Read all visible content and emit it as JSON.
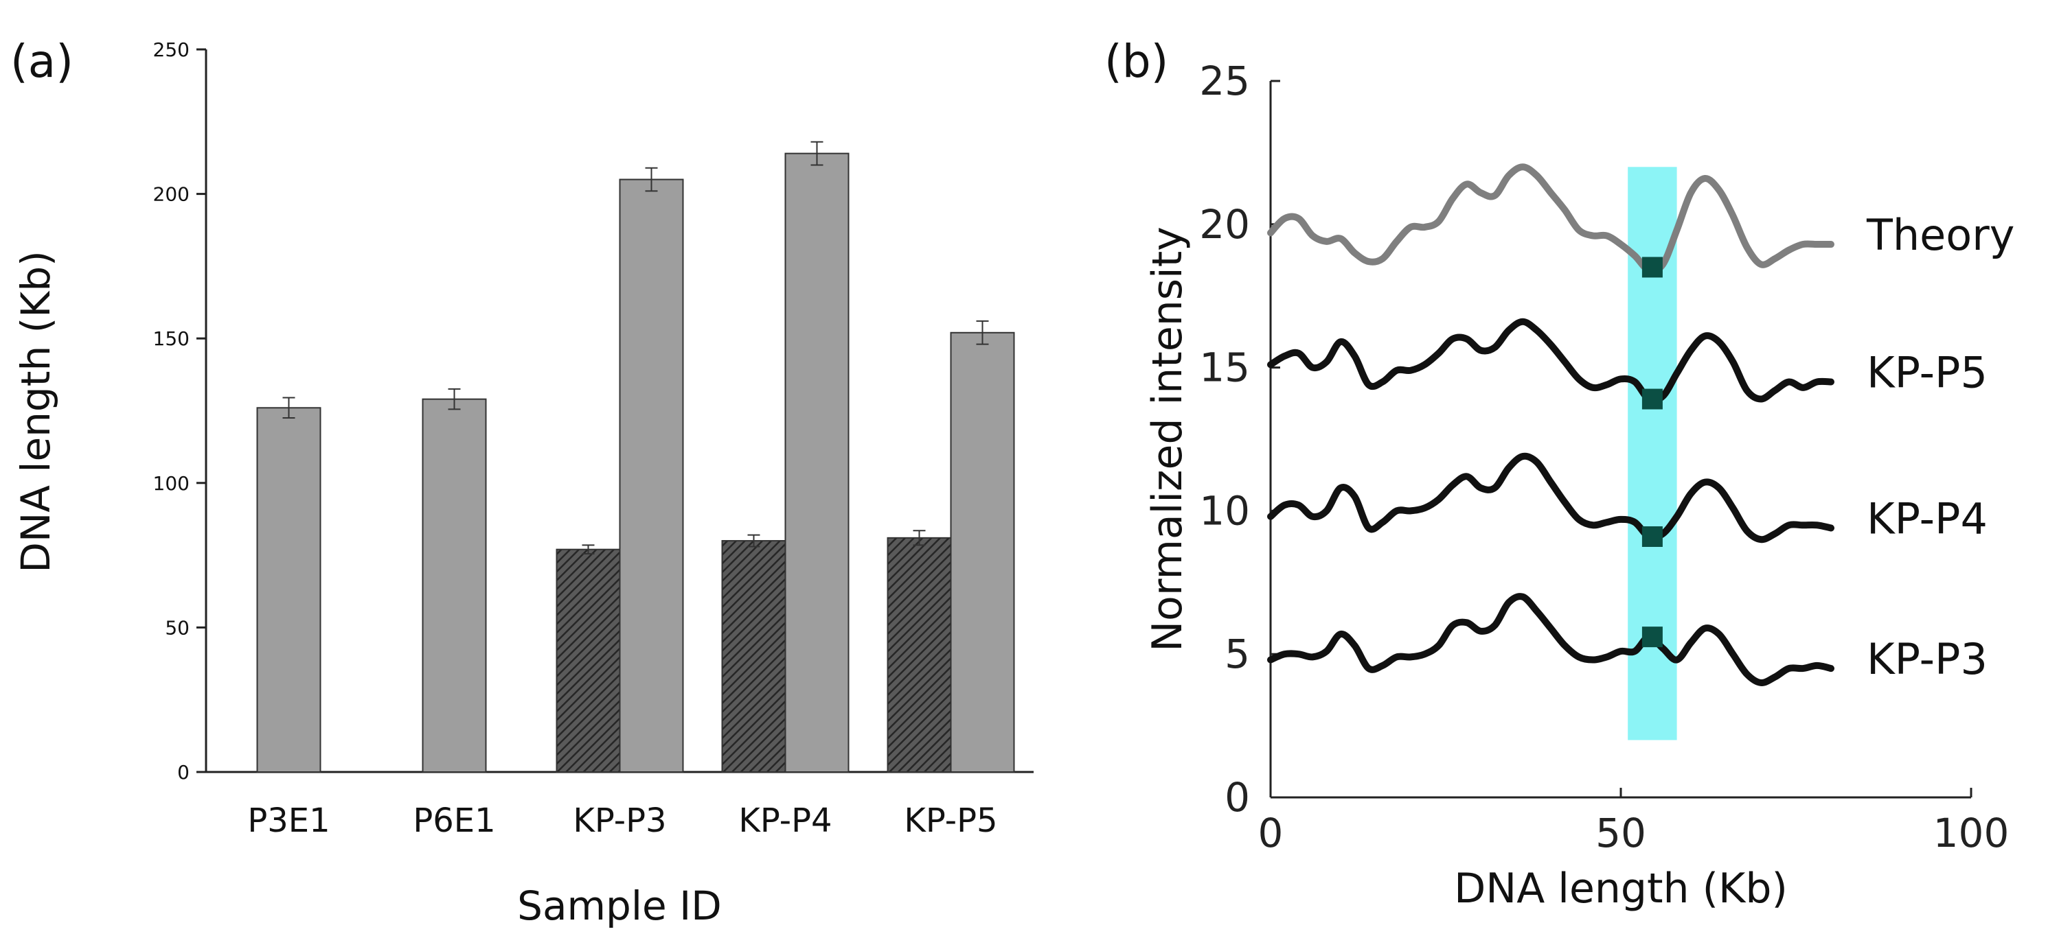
{
  "chart_data": [
    {
      "panel": "(a)",
      "type": "bar",
      "xlabel": "Sample ID",
      "ylabel": "DNA length (Kb)",
      "ylim": [
        0,
        250
      ],
      "yticks": [
        0,
        50,
        100,
        150,
        200,
        250
      ],
      "categories": [
        "P3E1",
        "P6E1",
        "KP-P3",
        "KP-P4",
        "KP-P5"
      ],
      "series": [
        {
          "name": "hatched",
          "fill": "#444444",
          "values": [
            null,
            null,
            77,
            80,
            81
          ],
          "errors": [
            null,
            null,
            1.5,
            2,
            2.5
          ]
        },
        {
          "name": "solid",
          "fill": "#9e9e9e",
          "values": [
            126,
            129,
            205,
            214,
            152
          ],
          "errors": [
            3.5,
            3.5,
            4,
            4,
            4
          ]
        }
      ]
    },
    {
      "panel": "(b)",
      "type": "line",
      "xlabel": "DNA length (Kb)",
      "ylabel": "Normalized intensity",
      "xlim": [
        0,
        100
      ],
      "ylim": [
        0,
        25
      ],
      "xticks": [
        0,
        50,
        100
      ],
      "yticks": [
        0,
        5,
        10,
        15,
        20,
        25
      ],
      "highlight": {
        "x": [
          51,
          58
        ],
        "y": [
          2,
          22
        ],
        "color": "#7ff3f5"
      },
      "series": [
        {
          "name": "Theory",
          "color": "#7f7f7f",
          "marker": [
            54.5,
            18.5
          ],
          "x": [
            0,
            2,
            4,
            6,
            8,
            10,
            12,
            14,
            16,
            18,
            20,
            22,
            24,
            26,
            28,
            30,
            32,
            34,
            36,
            38,
            40,
            42,
            44,
            46,
            48,
            50,
            52,
            54,
            56,
            58,
            60,
            62,
            64,
            66,
            68,
            70,
            72,
            74,
            76,
            78,
            80
          ],
          "y": [
            19.7,
            20.2,
            20.2,
            19.6,
            19.4,
            19.5,
            19.0,
            18.7,
            18.8,
            19.4,
            19.9,
            19.9,
            20.1,
            20.9,
            21.4,
            21.1,
            21.0,
            21.7,
            22.0,
            21.7,
            21.1,
            20.5,
            19.8,
            19.6,
            19.6,
            19.3,
            18.9,
            18.4,
            18.6,
            19.8,
            21.1,
            21.6,
            21.2,
            20.3,
            19.2,
            18.6,
            18.8,
            19.1,
            19.3,
            19.3,
            19.3
          ]
        },
        {
          "name": "KP-P5",
          "color": "#111111",
          "marker": [
            54.5,
            13.9
          ],
          "x": [
            0,
            2,
            4,
            6,
            8,
            10,
            12,
            14,
            16,
            18,
            20,
            22,
            24,
            26,
            28,
            30,
            32,
            34,
            36,
            38,
            40,
            42,
            44,
            46,
            48,
            50,
            52,
            54,
            56,
            58,
            60,
            62,
            64,
            66,
            68,
            70,
            72,
            74,
            76,
            78,
            80
          ],
          "y": [
            15.1,
            15.4,
            15.5,
            15.0,
            15.2,
            15.9,
            15.4,
            14.4,
            14.5,
            14.9,
            14.9,
            15.1,
            15.5,
            16.0,
            16.0,
            15.6,
            15.7,
            16.3,
            16.6,
            16.3,
            15.8,
            15.2,
            14.6,
            14.3,
            14.4,
            14.6,
            14.5,
            13.9,
            14.0,
            14.8,
            15.6,
            16.1,
            15.9,
            15.2,
            14.2,
            13.9,
            14.2,
            14.5,
            14.3,
            14.5,
            14.5
          ]
        },
        {
          "name": "KP-P4",
          "color": "#111111",
          "marker": [
            54.5,
            9.1
          ],
          "x": [
            0,
            2,
            4,
            6,
            8,
            10,
            12,
            14,
            16,
            18,
            20,
            22,
            24,
            26,
            28,
            30,
            32,
            34,
            36,
            38,
            40,
            42,
            44,
            46,
            48,
            50,
            52,
            54,
            56,
            58,
            60,
            62,
            64,
            66,
            68,
            70,
            72,
            74,
            76,
            78,
            80
          ],
          "y": [
            9.8,
            10.2,
            10.2,
            9.8,
            10.0,
            10.8,
            10.5,
            9.4,
            9.6,
            10.0,
            10.0,
            10.1,
            10.4,
            10.9,
            11.2,
            10.8,
            10.8,
            11.5,
            11.9,
            11.7,
            11.0,
            10.3,
            9.7,
            9.5,
            9.6,
            9.7,
            9.6,
            9.1,
            9.2,
            9.8,
            10.6,
            11.0,
            10.8,
            10.1,
            9.3,
            9.0,
            9.2,
            9.5,
            9.5,
            9.5,
            9.4
          ]
        },
        {
          "name": "KP-P3",
          "color": "#111111",
          "marker": [
            54.5,
            5.6
          ],
          "x": [
            0,
            2,
            4,
            6,
            8,
            10,
            12,
            14,
            16,
            18,
            20,
            22,
            24,
            26,
            28,
            30,
            32,
            34,
            36,
            38,
            40,
            42,
            44,
            46,
            48,
            50,
            52,
            54,
            56,
            58,
            60,
            62,
            64,
            66,
            68,
            70,
            72,
            74,
            76,
            78,
            80
          ],
          "y": [
            4.8,
            5.0,
            5.0,
            4.9,
            5.1,
            5.7,
            5.3,
            4.5,
            4.6,
            4.9,
            4.9,
            5.0,
            5.3,
            6.0,
            6.1,
            5.8,
            6.0,
            6.8,
            7.0,
            6.5,
            5.9,
            5.3,
            4.9,
            4.8,
            4.9,
            5.1,
            5.1,
            5.6,
            5.2,
            4.8,
            5.4,
            5.9,
            5.7,
            5.0,
            4.3,
            4.0,
            4.2,
            4.5,
            4.5,
            4.6,
            4.5
          ]
        }
      ]
    }
  ]
}
